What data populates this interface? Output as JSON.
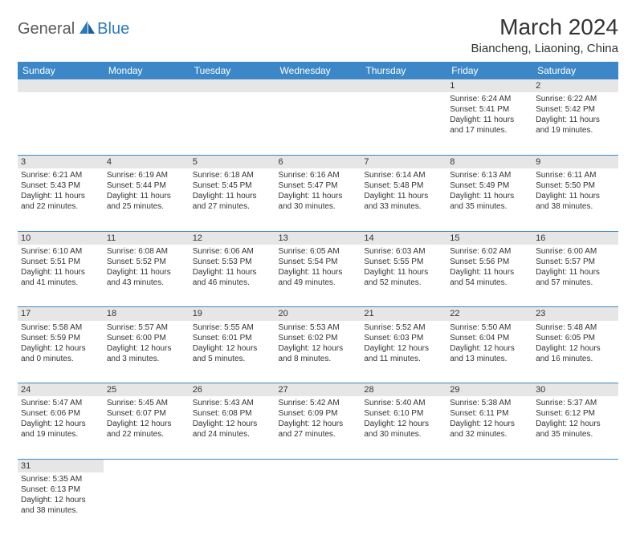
{
  "logo": {
    "part1": "General",
    "part2": "Blue"
  },
  "title": "March 2024",
  "location": "Biancheng, Liaoning, China",
  "colors": {
    "header_bg": "#3b87c8",
    "header_fg": "#ffffff",
    "daynum_bg": "#e6e6e6",
    "border": "#3b87c8",
    "text": "#333333",
    "logo_gray": "#5a5a5a",
    "logo_blue": "#2b7bbf"
  },
  "weekdays": [
    "Sunday",
    "Monday",
    "Tuesday",
    "Wednesday",
    "Thursday",
    "Friday",
    "Saturday"
  ],
  "weeks": [
    [
      null,
      null,
      null,
      null,
      null,
      {
        "n": "1",
        "sr": "Sunrise: 6:24 AM",
        "ss": "Sunset: 5:41 PM",
        "dl": "Daylight: 11 hours and 17 minutes."
      },
      {
        "n": "2",
        "sr": "Sunrise: 6:22 AM",
        "ss": "Sunset: 5:42 PM",
        "dl": "Daylight: 11 hours and 19 minutes."
      }
    ],
    [
      {
        "n": "3",
        "sr": "Sunrise: 6:21 AM",
        "ss": "Sunset: 5:43 PM",
        "dl": "Daylight: 11 hours and 22 minutes."
      },
      {
        "n": "4",
        "sr": "Sunrise: 6:19 AM",
        "ss": "Sunset: 5:44 PM",
        "dl": "Daylight: 11 hours and 25 minutes."
      },
      {
        "n": "5",
        "sr": "Sunrise: 6:18 AM",
        "ss": "Sunset: 5:45 PM",
        "dl": "Daylight: 11 hours and 27 minutes."
      },
      {
        "n": "6",
        "sr": "Sunrise: 6:16 AM",
        "ss": "Sunset: 5:47 PM",
        "dl": "Daylight: 11 hours and 30 minutes."
      },
      {
        "n": "7",
        "sr": "Sunrise: 6:14 AM",
        "ss": "Sunset: 5:48 PM",
        "dl": "Daylight: 11 hours and 33 minutes."
      },
      {
        "n": "8",
        "sr": "Sunrise: 6:13 AM",
        "ss": "Sunset: 5:49 PM",
        "dl": "Daylight: 11 hours and 35 minutes."
      },
      {
        "n": "9",
        "sr": "Sunrise: 6:11 AM",
        "ss": "Sunset: 5:50 PM",
        "dl": "Daylight: 11 hours and 38 minutes."
      }
    ],
    [
      {
        "n": "10",
        "sr": "Sunrise: 6:10 AM",
        "ss": "Sunset: 5:51 PM",
        "dl": "Daylight: 11 hours and 41 minutes."
      },
      {
        "n": "11",
        "sr": "Sunrise: 6:08 AM",
        "ss": "Sunset: 5:52 PM",
        "dl": "Daylight: 11 hours and 43 minutes."
      },
      {
        "n": "12",
        "sr": "Sunrise: 6:06 AM",
        "ss": "Sunset: 5:53 PM",
        "dl": "Daylight: 11 hours and 46 minutes."
      },
      {
        "n": "13",
        "sr": "Sunrise: 6:05 AM",
        "ss": "Sunset: 5:54 PM",
        "dl": "Daylight: 11 hours and 49 minutes."
      },
      {
        "n": "14",
        "sr": "Sunrise: 6:03 AM",
        "ss": "Sunset: 5:55 PM",
        "dl": "Daylight: 11 hours and 52 minutes."
      },
      {
        "n": "15",
        "sr": "Sunrise: 6:02 AM",
        "ss": "Sunset: 5:56 PM",
        "dl": "Daylight: 11 hours and 54 minutes."
      },
      {
        "n": "16",
        "sr": "Sunrise: 6:00 AM",
        "ss": "Sunset: 5:57 PM",
        "dl": "Daylight: 11 hours and 57 minutes."
      }
    ],
    [
      {
        "n": "17",
        "sr": "Sunrise: 5:58 AM",
        "ss": "Sunset: 5:59 PM",
        "dl": "Daylight: 12 hours and 0 minutes."
      },
      {
        "n": "18",
        "sr": "Sunrise: 5:57 AM",
        "ss": "Sunset: 6:00 PM",
        "dl": "Daylight: 12 hours and 3 minutes."
      },
      {
        "n": "19",
        "sr": "Sunrise: 5:55 AM",
        "ss": "Sunset: 6:01 PM",
        "dl": "Daylight: 12 hours and 5 minutes."
      },
      {
        "n": "20",
        "sr": "Sunrise: 5:53 AM",
        "ss": "Sunset: 6:02 PM",
        "dl": "Daylight: 12 hours and 8 minutes."
      },
      {
        "n": "21",
        "sr": "Sunrise: 5:52 AM",
        "ss": "Sunset: 6:03 PM",
        "dl": "Daylight: 12 hours and 11 minutes."
      },
      {
        "n": "22",
        "sr": "Sunrise: 5:50 AM",
        "ss": "Sunset: 6:04 PM",
        "dl": "Daylight: 12 hours and 13 minutes."
      },
      {
        "n": "23",
        "sr": "Sunrise: 5:48 AM",
        "ss": "Sunset: 6:05 PM",
        "dl": "Daylight: 12 hours and 16 minutes."
      }
    ],
    [
      {
        "n": "24",
        "sr": "Sunrise: 5:47 AM",
        "ss": "Sunset: 6:06 PM",
        "dl": "Daylight: 12 hours and 19 minutes."
      },
      {
        "n": "25",
        "sr": "Sunrise: 5:45 AM",
        "ss": "Sunset: 6:07 PM",
        "dl": "Daylight: 12 hours and 22 minutes."
      },
      {
        "n": "26",
        "sr": "Sunrise: 5:43 AM",
        "ss": "Sunset: 6:08 PM",
        "dl": "Daylight: 12 hours and 24 minutes."
      },
      {
        "n": "27",
        "sr": "Sunrise: 5:42 AM",
        "ss": "Sunset: 6:09 PM",
        "dl": "Daylight: 12 hours and 27 minutes."
      },
      {
        "n": "28",
        "sr": "Sunrise: 5:40 AM",
        "ss": "Sunset: 6:10 PM",
        "dl": "Daylight: 12 hours and 30 minutes."
      },
      {
        "n": "29",
        "sr": "Sunrise: 5:38 AM",
        "ss": "Sunset: 6:11 PM",
        "dl": "Daylight: 12 hours and 32 minutes."
      },
      {
        "n": "30",
        "sr": "Sunrise: 5:37 AM",
        "ss": "Sunset: 6:12 PM",
        "dl": "Daylight: 12 hours and 35 minutes."
      }
    ],
    [
      {
        "n": "31",
        "sr": "Sunrise: 5:35 AM",
        "ss": "Sunset: 6:13 PM",
        "dl": "Daylight: 12 hours and 38 minutes."
      },
      null,
      null,
      null,
      null,
      null,
      null
    ]
  ]
}
